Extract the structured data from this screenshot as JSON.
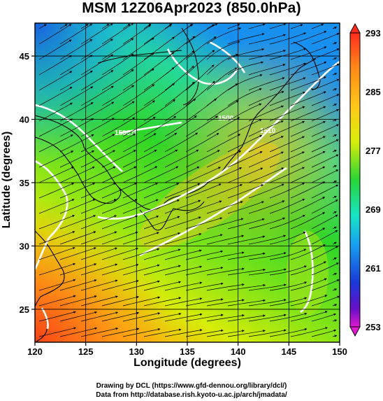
{
  "title": "MSM 12Z06Apr2023 (850.0hPa)",
  "xlabel": "Longitude (degrees)",
  "ylabel": "Latitude  (degrees)",
  "credit_line1": "Drawing by DCL (https://www.gfd-dennou.org/library/dcl/)",
  "credit_line2": "Data from http://database.rish.kyoto-u.ac.jp/arch/jmadata/",
  "chart_data": {
    "type": "heatmap",
    "title": "MSM 12Z06Apr2023 (850.0hPa)",
    "xlabel": "Longitude (degrees)",
    "ylabel": "Latitude  (degrees)",
    "xlim": [
      120,
      150
    ],
    "ylim": [
      22.4,
      47.6
    ],
    "x_ticks": [
      "120",
      "125",
      "130",
      "135",
      "140",
      "145",
      "150"
    ],
    "y_ticks": [
      "25",
      "30",
      "35",
      "40",
      "45"
    ],
    "grid": true,
    "colorbar": {
      "min": 253,
      "max": 293,
      "labels": [
        "293",
        "285",
        "277",
        "269",
        "261",
        "253"
      ],
      "colors": [
        "#ff2d1e",
        "#ff9a14",
        "#e6ec0a",
        "#22d63a",
        "#18e6c8",
        "#1aa0f0",
        "#1a3ad8",
        "#6010c8",
        "#e01ad0"
      ],
      "placement": "right"
    },
    "contour_labels": [
      "1500.0",
      "1500",
      "1510"
    ],
    "overlay": "streamlines"
  }
}
